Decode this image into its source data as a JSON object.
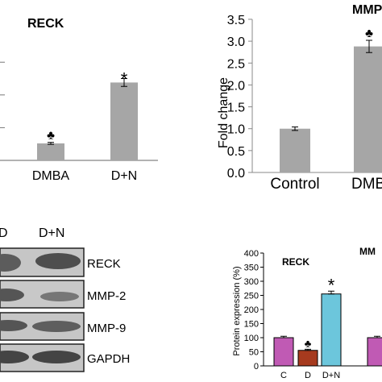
{
  "colors": {
    "gray_bar": "#a6a6a6",
    "blot_bg": "#c6c6c6",
    "magenta": "#c05ab4",
    "brown": "#a63a1e",
    "cyan": "#6cc6dc"
  },
  "chart_data": [
    {
      "type": "bar",
      "title": "RECK",
      "categories": [
        "DMBA",
        "D+N"
      ],
      "values": [
        0.52,
        2.38
      ],
      "error": [
        0.03,
        0.12
      ],
      "annotations": [
        "♣",
        "*"
      ],
      "ylim": [
        0,
        3.5
      ]
    },
    {
      "type": "bar",
      "title": "MMP",
      "ylabel": "Fold change",
      "categories": [
        "Control",
        "DMB"
      ],
      "values": [
        1.0,
        2.88
      ],
      "error": [
        0.04,
        0.14
      ],
      "annotations": [
        "",
        "♣"
      ],
      "ylim": [
        0,
        3.5
      ],
      "yticks": [
        "0.0",
        "0.5",
        "1.0",
        "1.5",
        "2.0",
        "2.5",
        "3.0",
        "3.5"
      ]
    },
    {
      "type": "bar",
      "title": "RECK",
      "panel_label": "MM",
      "ylabel": "Protein expression (%)",
      "categories": [
        "C",
        "D",
        "D+N"
      ],
      "values": [
        100,
        55,
        255
      ],
      "error": [
        5,
        4,
        10
      ],
      "colors": [
        "#c05ab4",
        "#a63a1e",
        "#6cc6dc"
      ],
      "annotations": [
        "",
        "♣",
        "*"
      ],
      "ylim": [
        0,
        400
      ],
      "yticks": [
        "0",
        "50",
        "100",
        "150",
        "200",
        "250",
        "300",
        "350",
        "400"
      ],
      "partial_next_value": 100
    }
  ],
  "blot": {
    "lane_headers": [
      "D",
      "D+N"
    ],
    "rows": [
      "RECK",
      "MMP-2",
      "MMP-9",
      "GAPDH"
    ]
  }
}
